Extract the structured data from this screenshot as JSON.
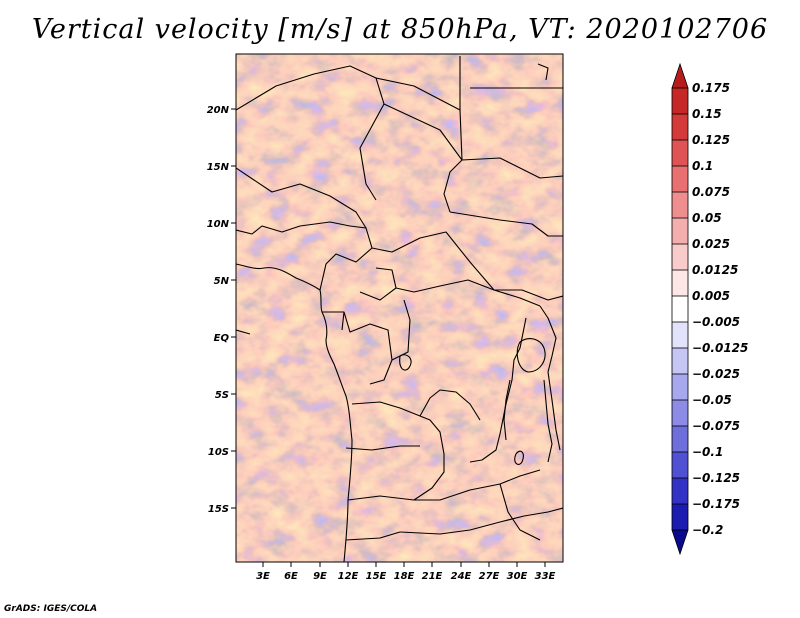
{
  "title": "Vertical velocity [m/s] at 850hPa, VT: 2020102706",
  "credit": "GrADS: IGES/COLA",
  "map": {
    "lat_ticks": [
      "20N",
      "15N",
      "10N",
      "5N",
      "EQ",
      "5S",
      "10S",
      "15S"
    ],
    "lon_ticks": [
      "3E",
      "6E",
      "9E",
      "12E",
      "15E",
      "18E",
      "21E",
      "24E",
      "27E",
      "30E",
      "33E"
    ]
  },
  "colorbar": {
    "levels": [
      "0.175",
      "0.15",
      "0.125",
      "0.1",
      "0.075",
      "0.05",
      "0.025",
      "0.0125",
      "0.005",
      "−0.005",
      "−0.0125",
      "−0.025",
      "−0.05",
      "−0.075",
      "−0.1",
      "−0.125",
      "−0.175",
      "−0.2"
    ],
    "colors": [
      "#b71c1c",
      "#c62828",
      "#d43a3a",
      "#de5454",
      "#e87070",
      "#ef8e8e",
      "#f5aeae",
      "#f9cccc",
      "#fce6e6",
      "#ffffff",
      "#e2e2fb",
      "#c6c6f5",
      "#a8a8ee",
      "#8c8ce6",
      "#6f6fdc",
      "#5050d2",
      "#3232c4",
      "#1c1cb0",
      "#0a0a90"
    ]
  }
}
